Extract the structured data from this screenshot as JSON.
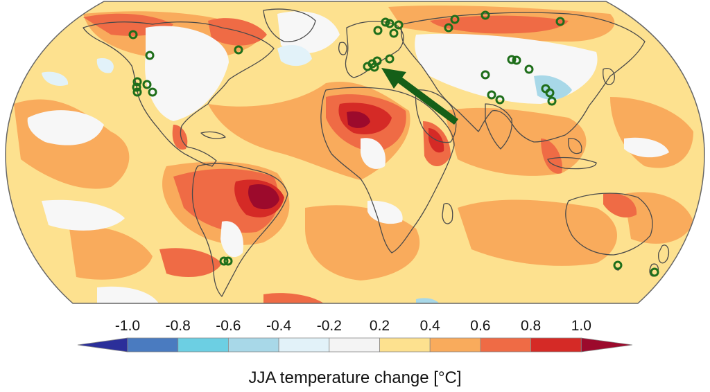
{
  "colorbar": {
    "title": "JJA temperature change [°C]",
    "ticks": [
      "-1.0",
      "-0.8",
      "-0.6",
      "-0.4",
      "-0.2",
      "0.2",
      "0.4",
      "0.6",
      "0.8",
      "1.0"
    ],
    "bins": [
      {
        "color": "#2b2f9a"
      },
      {
        "color": "#4a7bc0"
      },
      {
        "color": "#6ccfe3"
      },
      {
        "color": "#a8d8e8"
      },
      {
        "color": "#e2f2f9"
      },
      {
        "color": "#f4f4f4"
      },
      {
        "color": "#fde18f"
      },
      {
        "color": "#f9ab5c"
      },
      {
        "color": "#ef6b45"
      },
      {
        "color": "#d52a26"
      },
      {
        "color": "#9c0a2c"
      }
    ]
  },
  "map": {
    "projection": "robinson",
    "ocean_base_color": "#fde18f",
    "coastline_color": "#4a4a4a",
    "site_marker_color": "#1e6e1a",
    "arrow_color": "#155f18"
  }
}
